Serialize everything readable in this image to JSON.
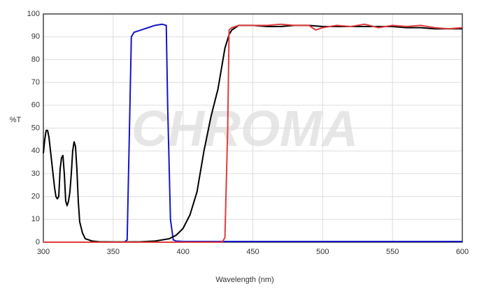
{
  "chart_data": {
    "type": "line",
    "watermark": "CHROMA",
    "x_label": "Wavelength (nm)",
    "y_label": "%T",
    "xlim": [
      300,
      600
    ],
    "xticks": [
      300,
      350,
      400,
      450,
      500,
      550,
      600
    ],
    "ylim": [
      0,
      100
    ],
    "yticks": [
      0,
      10,
      20,
      30,
      40,
      50,
      60,
      70,
      80,
      90,
      100
    ],
    "grid": true,
    "series": [
      {
        "color": "#1515c8",
        "x": [
          300,
          358,
          360,
          362,
          363,
          365,
          370,
          375,
          380,
          385,
          388,
          389,
          391,
          393,
          395,
          400,
          600
        ],
        "values": [
          0,
          0,
          1,
          60,
          90,
          92,
          93,
          94,
          95,
          95.5,
          95,
          60,
          10,
          1,
          0.5,
          0.3,
          0.3
        ]
      },
      {
        "color": "#000000",
        "x": [
          300,
          301,
          302,
          303,
          304,
          306,
          308,
          309,
          310,
          311,
          312,
          313,
          314,
          315,
          316,
          317,
          318,
          319,
          320,
          321,
          322,
          323,
          324,
          325,
          326,
          328,
          330,
          335,
          340,
          350,
          360,
          370,
          380,
          385,
          390,
          395,
          400,
          405,
          410,
          415,
          420,
          425,
          430,
          433,
          435,
          440,
          450,
          460,
          470,
          480,
          490,
          500,
          510,
          520,
          530,
          540,
          550,
          560,
          570,
          580,
          590,
          600
        ],
        "values": [
          39,
          45,
          49,
          49,
          46,
          35,
          24,
          20,
          19,
          20,
          32,
          37,
          38,
          30,
          18,
          16,
          18,
          22,
          30,
          40,
          44,
          42,
          32,
          18,
          9,
          4,
          1.5,
          0.5,
          0.2,
          0.1,
          0.1,
          0.2,
          0.5,
          1,
          1.5,
          3,
          6,
          12,
          22,
          40,
          55,
          67,
          85,
          91,
          93,
          95,
          95,
          94.5,
          94.5,
          95,
          95,
          94.5,
          94.5,
          94.5,
          94.5,
          94.5,
          94.5,
          94,
          94,
          93.5,
          93.5,
          93.5
        ]
      },
      {
        "color": "#e03c3c",
        "x": [
          300,
          428,
          430,
          432,
          433,
          435,
          440,
          450,
          460,
          470,
          480,
          490,
          495,
          500,
          510,
          520,
          530,
          540,
          550,
          560,
          570,
          580,
          590,
          600
        ],
        "values": [
          0,
          0,
          2,
          50,
          93,
          94,
          95,
          95,
          95,
          95.5,
          95,
          95,
          93,
          94,
          95,
          94.5,
          95.5,
          94,
          95,
          94.5,
          95,
          94,
          93.5,
          94
        ]
      }
    ]
  }
}
